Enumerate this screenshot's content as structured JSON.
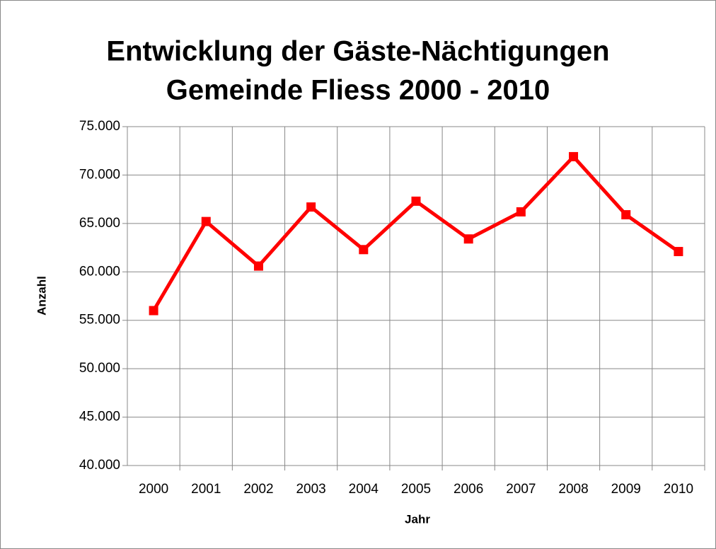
{
  "chart_data": {
    "type": "line",
    "title": [
      "Entwicklung der Gäste-Nächtigungen",
      "Gemeinde Fliess 2000 - 2010"
    ],
    "x_label": "Jahr",
    "y_label": "Anzahl",
    "categories": [
      "2000",
      "2001",
      "2002",
      "2003",
      "2004",
      "2005",
      "2006",
      "2007",
      "2008",
      "2009",
      "2010"
    ],
    "series": [
      {
        "color": "#ff0000",
        "values": [
          56000,
          65200,
          60600,
          66700,
          62300,
          67300,
          63400,
          66200,
          71900,
          65900,
          62100
        ]
      }
    ],
    "ylim": [
      40000,
      75000
    ],
    "yticks": [
      {
        "value": 40000,
        "label": "40.000"
      },
      {
        "value": 45000,
        "label": "45.000"
      },
      {
        "value": 50000,
        "label": "50.000"
      },
      {
        "value": 55000,
        "label": "55.000"
      },
      {
        "value": 60000,
        "label": "60.000"
      },
      {
        "value": 65000,
        "label": "65.000"
      },
      {
        "value": 70000,
        "label": "70.000"
      },
      {
        "value": 75000,
        "label": "75.000"
      }
    ],
    "grid": true
  }
}
